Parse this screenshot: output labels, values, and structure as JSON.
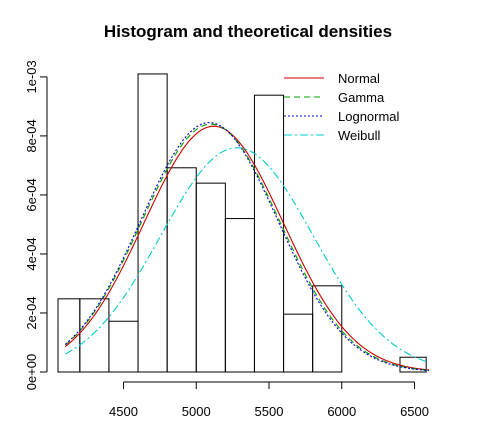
{
  "chart_data": {
    "type": "histogram",
    "title": "Histogram and theoretical densities",
    "xlabel": "",
    "ylabel": "",
    "xlim": [
      4050,
      6620
    ],
    "ylim": [
      0,
      0.00102
    ],
    "x_ticks": [
      4500,
      5000,
      5500,
      6000,
      6500
    ],
    "x_tick_labels": [
      "4500",
      "5000",
      "5500",
      "6000",
      "6500"
    ],
    "y_ticks": [
      0,
      0.0002,
      0.0004,
      0.0006,
      0.0008,
      0.001
    ],
    "y_tick_labels": [
      "0e+00",
      "2e-04",
      "4e-04",
      "6e-04",
      "8e-04",
      "1e-03"
    ],
    "bins": [
      {
        "start": 4050,
        "end": 4200,
        "density": 0.000248
      },
      {
        "start": 4200,
        "end": 4400,
        "density": 0.000248
      },
      {
        "start": 4400,
        "end": 4600,
        "density": 0.000172
      },
      {
        "start": 4600,
        "end": 4800,
        "density": 0.00101
      },
      {
        "start": 4800,
        "end": 5000,
        "density": 0.000692
      },
      {
        "start": 5000,
        "end": 5200,
        "density": 0.00064
      },
      {
        "start": 5200,
        "end": 5400,
        "density": 0.00052
      },
      {
        "start": 5400,
        "end": 5600,
        "density": 0.000938
      },
      {
        "start": 5600,
        "end": 5800,
        "density": 0.000196
      },
      {
        "start": 5800,
        "end": 6000,
        "density": 0.000292
      },
      {
        "start": 6000,
        "end": 6200,
        "density": 0
      },
      {
        "start": 6200,
        "end": 6400,
        "density": 0
      },
      {
        "start": 6400,
        "end": 6580,
        "density": 5e-05
      }
    ],
    "series": [
      {
        "name": "Normal",
        "color": "#cc0000",
        "dash": "solid",
        "mean": 5120,
        "sd": 479,
        "xrange": [
          4100,
          6600
        ]
      },
      {
        "name": "Gamma",
        "color": "#00a000",
        "dash": "dashed",
        "mean": 5100,
        "sd": 475,
        "xrange": [
          4100,
          6600
        ]
      },
      {
        "name": "Lognormal",
        "color": "#0000cc",
        "dash": "dotted",
        "mean": 5090,
        "sd": 472,
        "xrange": [
          4100,
          6600
        ]
      },
      {
        "name": "Weibull",
        "color": "#00cccc",
        "dash": "dashdot",
        "mean": 5280,
        "sd": 525,
        "xrange": [
          4100,
          6600
        ]
      }
    ],
    "legend": {
      "position": "top-right"
    }
  }
}
